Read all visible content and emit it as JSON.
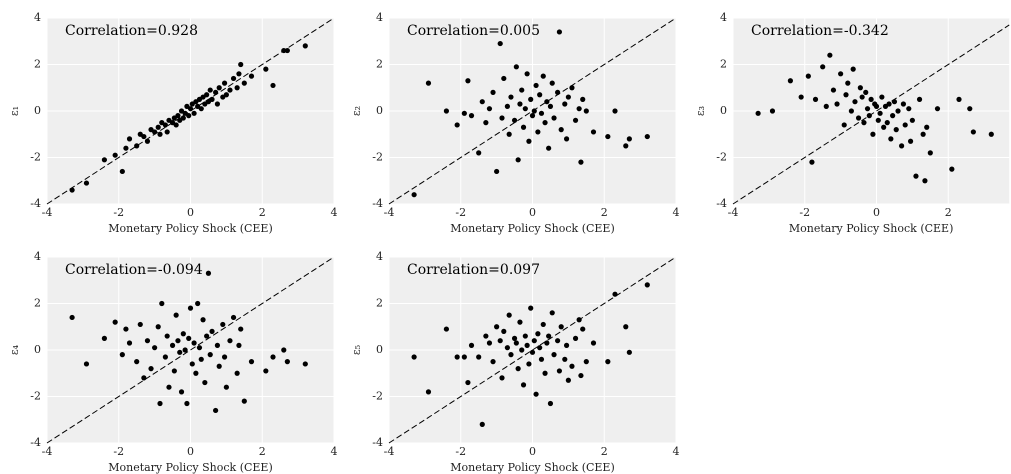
{
  "chart_data": [
    {
      "type": "scatter",
      "annotation": "Correlation=0.928",
      "xlabel": "Monetary Policy Shock (CEE)",
      "ylabel": "ε₁",
      "color": "#000000",
      "grid": true,
      "xlim": [
        -4,
        4
      ],
      "ylim": [
        -4,
        4
      ],
      "xticks": [
        -4,
        -2,
        0,
        2,
        4
      ],
      "yticks": [
        -4,
        -2,
        0,
        2,
        4
      ],
      "x": [
        -3.3,
        -2.9,
        -2.4,
        -2.1,
        -1.9,
        -1.8,
        -1.7,
        -1.5,
        -1.4,
        -1.3,
        -1.2,
        -1.1,
        -1.0,
        -0.9,
        -0.85,
        -0.8,
        -0.7,
        -0.65,
        -0.6,
        -0.5,
        -0.45,
        -0.4,
        -0.35,
        -0.3,
        -0.25,
        -0.2,
        -0.15,
        -0.1,
        -0.05,
        0.0,
        0.05,
        0.1,
        0.15,
        0.2,
        0.25,
        0.3,
        0.35,
        0.4,
        0.45,
        0.5,
        0.55,
        0.6,
        0.7,
        0.75,
        0.8,
        0.9,
        0.95,
        1.0,
        1.1,
        1.2,
        1.3,
        1.35,
        1.4,
        1.5,
        1.7,
        2.1,
        2.3,
        2.6,
        2.7,
        3.2
      ],
      "values": [
        -3.4,
        -3.1,
        -2.1,
        -1.9,
        -2.6,
        -1.6,
        -1.2,
        -1.5,
        -1.0,
        -1.1,
        -1.3,
        -0.8,
        -0.9,
        -0.7,
        -1.0,
        -0.5,
        -0.6,
        -0.9,
        -0.4,
        -0.5,
        -0.3,
        -0.6,
        -0.2,
        -0.4,
        0.0,
        -0.3,
        -0.1,
        0.2,
        -0.2,
        0.1,
        0.3,
        -0.1,
        0.4,
        0.2,
        0.5,
        0.1,
        0.6,
        0.3,
        0.7,
        0.4,
        0.9,
        0.5,
        0.8,
        0.3,
        1.0,
        0.6,
        1.2,
        0.7,
        0.9,
        1.4,
        1.0,
        1.6,
        2.0,
        1.2,
        1.5,
        1.8,
        1.1,
        2.6,
        2.6,
        2.8
      ]
    },
    {
      "type": "scatter",
      "annotation": "Correlation=0.005",
      "xlabel": "Monetary Policy Shock (CEE)",
      "ylabel": "ε₂",
      "color": "#000000",
      "grid": true,
      "xlim": [
        -4,
        4
      ],
      "ylim": [
        -4,
        4
      ],
      "xticks": [
        -4,
        -2,
        0,
        2,
        4
      ],
      "yticks": [
        -4,
        -2,
        0,
        2,
        4
      ],
      "x": [
        -3.3,
        -2.9,
        -2.4,
        -2.1,
        -1.9,
        -1.8,
        -1.7,
        -1.5,
        -1.4,
        -1.3,
        -1.2,
        -1.1,
        -1.0,
        -0.9,
        -0.85,
        -0.8,
        -0.7,
        -0.65,
        -0.6,
        -0.5,
        -0.45,
        -0.4,
        -0.35,
        -0.3,
        -0.25,
        -0.2,
        -0.15,
        -0.1,
        -0.05,
        0.0,
        0.05,
        0.1,
        0.15,
        0.2,
        0.25,
        0.3,
        0.35,
        0.4,
        0.45,
        0.5,
        0.55,
        0.6,
        0.7,
        0.75,
        0.8,
        0.9,
        0.95,
        1.0,
        1.1,
        1.2,
        1.3,
        1.35,
        1.4,
        1.5,
        1.7,
        2.1,
        2.3,
        2.6,
        2.7,
        3.2
      ],
      "values": [
        -3.6,
        1.2,
        0.0,
        -0.6,
        -0.1,
        1.3,
        -0.2,
        -1.8,
        0.4,
        -0.5,
        0.1,
        0.8,
        -2.6,
        2.9,
        -0.3,
        1.4,
        0.2,
        -1.0,
        0.6,
        -0.4,
        1.9,
        -2.1,
        0.3,
        0.9,
        -0.7,
        0.1,
        1.6,
        -1.3,
        0.5,
        -0.2,
        0.0,
        1.1,
        -0.9,
        0.7,
        -0.1,
        1.5,
        -0.5,
        0.4,
        -1.6,
        0.2,
        1.2,
        -0.3,
        0.8,
        3.4,
        -0.8,
        0.3,
        -1.2,
        0.6,
        1.0,
        -0.4,
        0.1,
        -2.2,
        0.5,
        0.0,
        -0.9,
        -1.1,
        0.0,
        -1.5,
        -1.2,
        -1.1
      ]
    },
    {
      "type": "scatter",
      "annotation": "Correlation=-0.342",
      "xlabel": "Monetary Policy Shock (CEE)",
      "ylabel": "ε₃",
      "color": "#000000",
      "grid": true,
      "xlim": [
        -4,
        3.7
      ],
      "ylim": [
        -4,
        4
      ],
      "xticks": [
        -4,
        -2,
        0,
        2
      ],
      "yticks": [
        -4,
        -2,
        0,
        2,
        4
      ],
      "x": [
        -3.3,
        -2.9,
        -2.4,
        -2.1,
        -1.9,
        -1.8,
        -1.7,
        -1.5,
        -1.4,
        -1.3,
        -1.2,
        -1.1,
        -1.0,
        -0.9,
        -0.85,
        -0.8,
        -0.7,
        -0.65,
        -0.6,
        -0.5,
        -0.45,
        -0.4,
        -0.35,
        -0.3,
        -0.25,
        -0.2,
        -0.15,
        -0.1,
        -0.05,
        0.0,
        0.05,
        0.1,
        0.15,
        0.2,
        0.25,
        0.3,
        0.35,
        0.4,
        0.45,
        0.5,
        0.55,
        0.6,
        0.7,
        0.75,
        0.8,
        0.9,
        0.95,
        1.0,
        1.1,
        1.2,
        1.3,
        1.35,
        1.4,
        1.5,
        1.7,
        2.1,
        2.3,
        2.6,
        2.7,
        3.2
      ],
      "values": [
        -0.1,
        0.0,
        1.3,
        0.6,
        1.5,
        -2.2,
        0.5,
        1.9,
        0.2,
        2.4,
        0.9,
        0.3,
        1.6,
        -0.6,
        0.7,
        1.2,
        0.0,
        1.8,
        0.4,
        -0.3,
        1.0,
        0.6,
        -0.5,
        0.8,
        0.1,
        -0.2,
        0.5,
        -1.0,
        0.3,
        0.2,
        -0.4,
        -0.1,
        0.6,
        -0.7,
        0.2,
        -0.5,
        0.3,
        -1.2,
        -0.2,
        0.4,
        -0.8,
        0.0,
        -1.5,
        0.3,
        -0.6,
        0.1,
        -1.3,
        -0.4,
        -2.8,
        0.5,
        -1.0,
        -3.0,
        -0.7,
        -1.8,
        0.1,
        -2.5,
        0.5,
        0.1,
        -0.9,
        -1.0
      ]
    },
    {
      "type": "scatter",
      "annotation": "Correlation=-0.094",
      "xlabel": "Monetary Policy Shock (CEE)",
      "ylabel": "ε₄",
      "color": "#000000",
      "grid": true,
      "xlim": [
        -4,
        4
      ],
      "ylim": [
        -4,
        4
      ],
      "xticks": [
        -4,
        -2,
        0,
        2,
        4
      ],
      "yticks": [
        -4,
        -2,
        0,
        2,
        4
      ],
      "x": [
        -3.3,
        -2.9,
        -2.4,
        -2.1,
        -1.9,
        -1.8,
        -1.7,
        -1.5,
        -1.4,
        -1.3,
        -1.2,
        -1.1,
        -1.0,
        -0.9,
        -0.85,
        -0.8,
        -0.7,
        -0.65,
        -0.6,
        -0.5,
        -0.45,
        -0.4,
        -0.35,
        -0.3,
        -0.25,
        -0.2,
        -0.15,
        -0.1,
        -0.05,
        0.0,
        0.05,
        0.1,
        0.15,
        0.2,
        0.25,
        0.3,
        0.35,
        0.4,
        0.45,
        0.5,
        0.55,
        0.6,
        0.7,
        0.75,
        0.8,
        0.9,
        0.95,
        1.0,
        1.1,
        1.2,
        1.3,
        1.35,
        1.4,
        1.5,
        1.7,
        2.1,
        2.3,
        2.6,
        2.7,
        3.2
      ],
      "values": [
        1.4,
        -0.6,
        0.5,
        1.2,
        -0.2,
        0.9,
        0.3,
        -0.5,
        1.1,
        -1.2,
        0.4,
        -0.8,
        0.1,
        1.0,
        -2.3,
        2.0,
        -0.3,
        0.6,
        -1.6,
        0.2,
        -0.9,
        1.5,
        0.4,
        -0.1,
        -1.8,
        0.7,
        0.0,
        -2.3,
        0.5,
        1.8,
        -0.6,
        0.3,
        -1.0,
        2.0,
        0.1,
        -0.4,
        1.3,
        -1.4,
        0.6,
        3.3,
        -0.2,
        0.8,
        -2.6,
        0.2,
        -0.7,
        1.1,
        -0.3,
        -1.6,
        0.4,
        1.4,
        -1.0,
        0.2,
        0.9,
        -2.2,
        -0.5,
        -0.9,
        -0.3,
        0.0,
        -0.5,
        -0.6
      ]
    },
    {
      "type": "scatter",
      "annotation": "Correlation=0.097",
      "xlabel": "Monetary Policy Shock (CEE)",
      "ylabel": "ε₅",
      "color": "#000000",
      "grid": true,
      "xlim": [
        -4,
        4
      ],
      "ylim": [
        -4,
        4
      ],
      "xticks": [
        -4,
        -2,
        0,
        2,
        4
      ],
      "yticks": [
        -4,
        -2,
        0,
        2,
        4
      ],
      "x": [
        -3.3,
        -2.9,
        -2.4,
        -2.1,
        -1.9,
        -1.8,
        -1.7,
        -1.5,
        -1.4,
        -1.3,
        -1.2,
        -1.1,
        -1.0,
        -0.9,
        -0.85,
        -0.8,
        -0.7,
        -0.65,
        -0.6,
        -0.5,
        -0.45,
        -0.4,
        -0.35,
        -0.3,
        -0.25,
        -0.2,
        -0.15,
        -0.1,
        -0.05,
        0.0,
        0.05,
        0.1,
        0.15,
        0.2,
        0.25,
        0.3,
        0.35,
        0.4,
        0.45,
        0.5,
        0.55,
        0.6,
        0.7,
        0.75,
        0.8,
        0.9,
        0.95,
        1.0,
        1.1,
        1.2,
        1.3,
        1.35,
        1.4,
        1.5,
        1.7,
        2.1,
        2.3,
        2.6,
        2.7,
        3.2
      ],
      "values": [
        -0.3,
        -1.8,
        0.9,
        -0.3,
        -0.3,
        -1.4,
        0.2,
        -0.3,
        -3.2,
        0.6,
        0.3,
        -0.5,
        1.0,
        0.4,
        -1.2,
        0.8,
        0.1,
        1.5,
        -0.2,
        0.5,
        0.3,
        -0.8,
        1.2,
        0.0,
        -1.5,
        0.6,
        0.2,
        -0.6,
        1.8,
        -0.1,
        0.4,
        -1.9,
        0.7,
        0.1,
        -0.4,
        1.1,
        -1.0,
        0.3,
        0.6,
        -2.3,
        1.6,
        -0.2,
        0.4,
        -0.9,
        1.0,
        -0.4,
        0.2,
        -1.3,
        -0.7,
        0.5,
        1.3,
        -1.1,
        0.9,
        -0.5,
        0.3,
        -0.5,
        2.4,
        1.0,
        -0.1,
        2.8
      ]
    }
  ]
}
